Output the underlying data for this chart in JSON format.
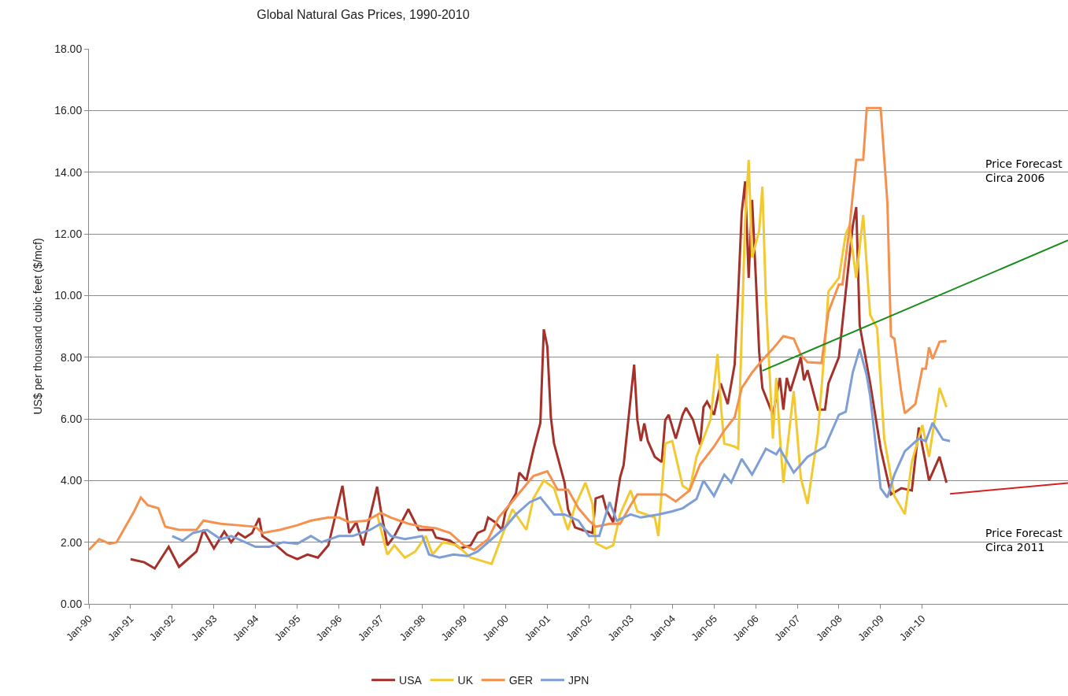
{
  "chart_data": {
    "type": "line",
    "title": "Global Natural Gas Prices, 1990-2010",
    "ylabel": "US$ per thousand cubic feet ($/mcf)",
    "xlim": [
      "1990-01",
      "2013-07"
    ],
    "ylim": [
      0,
      18
    ],
    "xticks": [
      {
        "value": "1990-01",
        "label": "Jan-90"
      },
      {
        "value": "1991-01",
        "label": "Jan-91"
      },
      {
        "value": "1992-01",
        "label": "Jan-92"
      },
      {
        "value": "1993-01",
        "label": "Jan-93"
      },
      {
        "value": "1994-01",
        "label": "Jan-94"
      },
      {
        "value": "1995-01",
        "label": "Jan-95"
      },
      {
        "value": "1996-01",
        "label": "Jan-96"
      },
      {
        "value": "1997-01",
        "label": "Jan-97"
      },
      {
        "value": "1998-01",
        "label": "Jan-98"
      },
      {
        "value": "1999-01",
        "label": "Jan-99"
      },
      {
        "value": "2000-01",
        "label": "Jan-00"
      },
      {
        "value": "2001-01",
        "label": "Jan-01"
      },
      {
        "value": "2002-01",
        "label": "Jan-02"
      },
      {
        "value": "2003-01",
        "label": "Jan-03"
      },
      {
        "value": "2004-01",
        "label": "Jan-04"
      },
      {
        "value": "2005-01",
        "label": "Jan-05"
      },
      {
        "value": "2006-01",
        "label": "Jan-06"
      },
      {
        "value": "2007-01",
        "label": "Jan-07"
      },
      {
        "value": "2008-01",
        "label": "Jan-08"
      },
      {
        "value": "2009-01",
        "label": "Jan-09"
      },
      {
        "value": "2010-01",
        "label": "Jan-10"
      }
    ],
    "yticks": [
      {
        "value": 0,
        "label": "0.00"
      },
      {
        "value": 2,
        "label": "2.00"
      },
      {
        "value": 4,
        "label": "4.00"
      },
      {
        "value": 6,
        "label": "6.00"
      },
      {
        "value": 8,
        "label": "8.00"
      },
      {
        "value": 10,
        "label": "10.00"
      },
      {
        "value": 12,
        "label": "12.00"
      },
      {
        "value": 14,
        "label": "14.00"
      },
      {
        "value": 16,
        "label": "16.00"
      },
      {
        "value": 18,
        "label": "18.00"
      }
    ],
    "grid": "y",
    "legend": "bottom",
    "marker": "none",
    "line_style": "solid",
    "annotations": [
      "Price Forecast\nCirca 2006",
      "Price Forecast\nCirca 2011"
    ],
    "series": [
      {
        "name": "USA",
        "color": "#a4322a",
        "x": [
          "1991-01",
          "1991-05",
          "1991-08",
          "1991-10",
          "1991-12",
          "1992-03",
          "1992-06",
          "1992-08",
          "1992-10",
          "1993-01",
          "1993-04",
          "1993-06",
          "1993-08",
          "1993-10",
          "1993-12",
          "1994-02",
          "1994-03",
          "1994-07",
          "1994-10",
          "1995-01",
          "1995-04",
          "1995-07",
          "1995-10",
          "1996-02",
          "1996-04",
          "1996-06",
          "1996-08",
          "1996-12",
          "1997-01",
          "1997-03",
          "1997-05",
          "1997-09",
          "1997-12",
          "1998-04",
          "1998-05",
          "1998-09",
          "1998-12",
          "1999-03",
          "1999-05",
          "1999-07",
          "1999-08",
          "1999-10",
          "1999-12",
          "2000-01",
          "2000-04",
          "2000-05",
          "2000-07",
          "2000-09",
          "2000-11",
          "2000-12",
          "2001-01",
          "2001-02",
          "2001-03",
          "2001-06",
          "2001-07",
          "2001-09",
          "2001-11",
          "2002-02",
          "2002-03",
          "2002-05",
          "2002-06",
          "2002-08",
          "2002-10",
          "2002-11",
          "2003-02",
          "2003-03",
          "2003-04",
          "2003-05",
          "2003-06",
          "2003-08",
          "2003-10",
          "2003-11",
          "2003-12",
          "2004-02",
          "2004-04",
          "2004-05",
          "2004-07",
          "2004-09",
          "2004-10",
          "2004-11",
          "2005-01",
          "2005-03",
          "2005-05",
          "2005-07",
          "2005-08",
          "2005-09",
          "2005-10",
          "2005-11",
          "2005-12",
          "2006-01",
          "2006-02",
          "2006-03",
          "2006-06",
          "2006-08",
          "2006-09",
          "2006-10",
          "2006-11",
          "2007-02",
          "2007-03",
          "2007-04",
          "2007-07",
          "2007-09",
          "2007-10",
          "2008-01",
          "2008-03",
          "2008-05",
          "2008-06",
          "2008-07",
          "2008-10",
          "2009-01",
          "2009-04",
          "2009-07",
          "2009-10",
          "2009-12",
          "2010-03",
          "2010-06",
          "2010-08"
        ],
        "values": [
          1.45,
          1.35,
          1.15,
          1.5,
          1.85,
          1.2,
          1.5,
          1.7,
          2.4,
          1.8,
          2.35,
          2.0,
          2.3,
          2.15,
          2.3,
          2.78,
          2.2,
          1.9,
          1.6,
          1.45,
          1.6,
          1.5,
          1.9,
          3.83,
          2.3,
          2.65,
          1.9,
          3.8,
          3.07,
          1.9,
          2.2,
          3.07,
          2.4,
          2.4,
          2.15,
          2.05,
          1.8,
          1.9,
          2.3,
          2.4,
          2.8,
          2.65,
          2.4,
          3.0,
          3.58,
          4.26,
          4.0,
          5.0,
          5.87,
          8.9,
          8.35,
          6.05,
          5.2,
          3.93,
          3.07,
          2.48,
          2.4,
          2.3,
          3.42,
          3.5,
          3.07,
          2.65,
          4.1,
          4.5,
          7.76,
          5.97,
          5.28,
          5.85,
          5.28,
          4.77,
          4.6,
          5.97,
          6.13,
          5.36,
          6.13,
          6.36,
          5.97,
          5.16,
          6.38,
          6.56,
          6.13,
          7.15,
          6.48,
          7.76,
          10.06,
          12.69,
          13.7,
          10.57,
          13.1,
          10.72,
          8.17,
          7.0,
          6.13,
          7.33,
          6.3,
          7.33,
          6.9,
          8.0,
          7.25,
          7.58,
          6.3,
          6.3,
          7.15,
          8.0,
          10.13,
          12.25,
          12.87,
          9.04,
          7.15,
          5.03,
          3.55,
          3.75,
          3.68,
          5.72,
          4.0,
          4.77,
          3.93
        ]
      },
      {
        "name": "UK",
        "color": "#f2c931",
        "x": [
          "1996-12",
          "1997-03",
          "1997-05",
          "1997-08",
          "1997-11",
          "1998-02",
          "1998-04",
          "1998-07",
          "1998-11",
          "1999-03",
          "1999-06",
          "1999-09",
          "1999-12",
          "2000-03",
          "2000-07",
          "2000-09",
          "2000-12",
          "2001-03",
          "2001-05",
          "2001-07",
          "2001-09",
          "2001-12",
          "2002-02",
          "2002-03",
          "2002-06",
          "2002-08",
          "2002-10",
          "2003-01",
          "2003-03",
          "2003-08",
          "2003-09",
          "2003-11",
          "2004-01",
          "2004-04",
          "2004-06",
          "2004-08",
          "2004-12",
          "2005-02",
          "2005-03",
          "2005-04",
          "2005-07",
          "2005-08",
          "2005-10",
          "2005-11",
          "2005-12",
          "2006-02",
          "2006-03",
          "2006-04",
          "2006-06",
          "2006-07",
          "2006-08",
          "2006-09",
          "2006-12",
          "2007-02",
          "2007-04",
          "2007-07",
          "2007-09",
          "2007-10",
          "2008-01",
          "2008-03",
          "2008-04",
          "2008-06",
          "2008-08",
          "2008-10",
          "2008-12",
          "2009-02",
          "2009-05",
          "2009-08",
          "2009-10",
          "2010-01",
          "2010-03",
          "2010-06",
          "2010-08"
        ],
        "values": [
          2.9,
          1.6,
          1.9,
          1.5,
          1.7,
          2.2,
          1.6,
          2.0,
          1.9,
          1.5,
          1.4,
          1.3,
          2.2,
          3.07,
          2.4,
          3.42,
          4.0,
          3.75,
          3.07,
          2.4,
          3.17,
          3.93,
          3.24,
          1.97,
          1.8,
          1.9,
          2.91,
          3.68,
          3.0,
          2.8,
          2.2,
          5.2,
          5.28,
          3.83,
          3.68,
          4.77,
          5.97,
          8.1,
          6.48,
          5.2,
          5.1,
          5.03,
          12.43,
          14.4,
          11.23,
          12.1,
          13.53,
          9.88,
          5.36,
          7.33,
          5.46,
          3.93,
          6.9,
          4.08,
          3.24,
          5.54,
          8.42,
          10.13,
          10.57,
          12.0,
          12.25,
          10.57,
          12.61,
          9.37,
          8.94,
          5.36,
          3.5,
          2.91,
          4.6,
          5.8,
          4.77,
          7.0,
          6.38
        ]
      },
      {
        "name": "GER",
        "color": "#f5914f",
        "x": [
          "1990-01",
          "1990-04",
          "1990-07",
          "1990-09",
          "1990-11",
          "1991-02",
          "1991-04",
          "1991-06",
          "1991-09",
          "1991-11",
          "1992-03",
          "1992-08",
          "1992-10",
          "1993-03",
          "1993-08",
          "1994-01",
          "1994-03",
          "1994-08",
          "1995-01",
          "1995-05",
          "1995-10",
          "1996-01",
          "1996-04",
          "1996-09",
          "1997-01",
          "1997-04",
          "1997-09",
          "1998-01",
          "1998-05",
          "1998-09",
          "1999-01",
          "1999-04",
          "1999-08",
          "1999-11",
          "2000-02",
          "2000-05",
          "2000-09",
          "2001-01",
          "2001-04",
          "2001-07",
          "2001-10",
          "2002-01",
          "2002-03",
          "2002-07",
          "2002-10",
          "2003-01",
          "2003-03",
          "2003-11",
          "2004-02",
          "2004-06",
          "2004-09",
          "2005-01",
          "2005-04",
          "2005-07",
          "2005-09",
          "2005-12",
          "2006-03",
          "2006-06",
          "2006-09",
          "2006-12",
          "2007-02",
          "2007-04",
          "2007-08",
          "2007-10",
          "2008-01",
          "2008-02",
          "2008-04",
          "2008-06",
          "2008-08",
          "2008-09",
          "2009-01",
          "2009-03",
          "2009-04",
          "2009-05",
          "2009-07",
          "2009-08",
          "2009-11",
          "2010-01",
          "2010-02",
          "2010-03",
          "2010-04",
          "2010-06",
          "2010-08"
        ],
        "values": [
          1.75,
          2.1,
          1.95,
          2.0,
          2.4,
          3.0,
          3.45,
          3.2,
          3.1,
          2.5,
          2.4,
          2.4,
          2.7,
          2.6,
          2.55,
          2.5,
          2.3,
          2.4,
          2.55,
          2.7,
          2.8,
          2.8,
          2.65,
          2.7,
          2.95,
          2.8,
          2.6,
          2.5,
          2.45,
          2.3,
          1.9,
          1.75,
          2.1,
          2.8,
          3.2,
          3.6,
          4.15,
          4.3,
          3.7,
          3.7,
          3.1,
          2.7,
          2.5,
          2.6,
          2.6,
          3.2,
          3.55,
          3.55,
          3.32,
          3.68,
          4.52,
          5.1,
          5.62,
          6.05,
          7.0,
          7.5,
          7.91,
          8.27,
          8.68,
          8.6,
          8.07,
          7.84,
          7.81,
          9.47,
          10.36,
          10.36,
          12.13,
          14.4,
          14.4,
          16.08,
          16.08,
          13.0,
          8.68,
          8.6,
          6.84,
          6.18,
          6.48,
          7.63,
          7.63,
          8.32,
          7.94,
          8.5,
          8.53
        ]
      },
      {
        "name": "JPN",
        "color": "#7e9fd6",
        "x": [
          "1992-01",
          "1992-04",
          "1992-07",
          "1992-11",
          "1993-03",
          "1993-06",
          "1993-10",
          "1994-01",
          "1994-05",
          "1994-09",
          "1995-01",
          "1995-05",
          "1995-08",
          "1996-01",
          "1996-05",
          "1996-10",
          "1997-01",
          "1997-04",
          "1997-08",
          "1998-01",
          "1998-03",
          "1998-06",
          "1998-10",
          "1999-02",
          "1999-05",
          "1999-09",
          "2000-01",
          "2000-04",
          "2000-08",
          "2000-11",
          "2001-03",
          "2001-06",
          "2001-10",
          "2002-01",
          "2002-04",
          "2002-07",
          "2002-09",
          "2003-01",
          "2003-04",
          "2003-09",
          "2004-01",
          "2004-04",
          "2004-08",
          "2004-10",
          "2005-01",
          "2005-04",
          "2005-06",
          "2005-09",
          "2005-12",
          "2006-04",
          "2006-07",
          "2006-08",
          "2006-12",
          "2007-02",
          "2007-04",
          "2007-09",
          "2008-01",
          "2008-03",
          "2008-05",
          "2008-07",
          "2008-09",
          "2008-10",
          "2009-01",
          "2009-03",
          "2009-05",
          "2009-08",
          "2009-12",
          "2010-02",
          "2010-04",
          "2010-07",
          "2010-09"
        ],
        "values": [
          2.2,
          2.05,
          2.3,
          2.4,
          2.1,
          2.2,
          2.0,
          1.85,
          1.85,
          2.0,
          1.95,
          2.2,
          2.0,
          2.2,
          2.2,
          2.4,
          2.6,
          2.2,
          2.1,
          2.2,
          1.6,
          1.5,
          1.6,
          1.55,
          1.7,
          2.1,
          2.5,
          2.9,
          3.3,
          3.45,
          2.9,
          2.9,
          2.7,
          2.2,
          2.2,
          3.3,
          2.7,
          2.9,
          2.8,
          2.9,
          3.0,
          3.1,
          3.4,
          4.0,
          3.5,
          4.19,
          3.93,
          4.7,
          4.19,
          5.03,
          4.85,
          5.03,
          4.26,
          4.52,
          4.77,
          5.1,
          6.13,
          6.23,
          7.5,
          8.27,
          7.4,
          6.74,
          3.75,
          3.45,
          4.19,
          4.95,
          5.36,
          5.28,
          5.87,
          5.33,
          5.28
        ]
      },
      {
        "type": "line",
        "color": "#1a8c1a",
        "x": [
          "2006-03",
          "2013-07"
        ],
        "values": [
          7.56,
          11.79
        ]
      },
      {
        "type": "line",
        "color": "#d82020",
        "x": [
          "2010-09",
          "2013-07"
        ],
        "values": [
          3.57,
          3.92
        ]
      }
    ]
  }
}
